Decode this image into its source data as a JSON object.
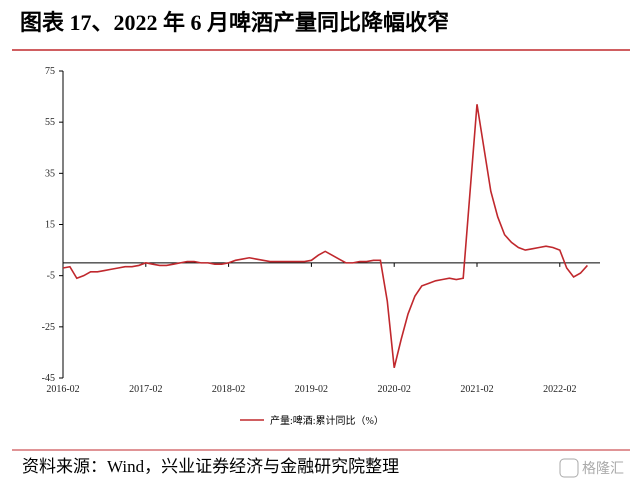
{
  "chart_data": {
    "type": "line",
    "title": "图表 17、2022 年 6 月啤酒产量同比降幅收窄",
    "source": "资料来源：Wind，兴业证券经济与金融研究院整理",
    "watermark": "格隆汇",
    "x": [
      "2016-02",
      "2016-03",
      "2016-04",
      "2016-05",
      "2016-06",
      "2016-07",
      "2016-08",
      "2016-09",
      "2016-10",
      "2016-11",
      "2016-12",
      "2017-01",
      "2017-02",
      "2017-03",
      "2017-04",
      "2017-05",
      "2017-06",
      "2017-07",
      "2017-08",
      "2017-09",
      "2017-10",
      "2017-11",
      "2017-12",
      "2018-01",
      "2018-02",
      "2018-03",
      "2018-04",
      "2018-05",
      "2018-06",
      "2018-07",
      "2018-08",
      "2018-09",
      "2018-10",
      "2018-11",
      "2018-12",
      "2019-01",
      "2019-02",
      "2019-03",
      "2019-04",
      "2019-05",
      "2019-06",
      "2019-07",
      "2019-08",
      "2019-09",
      "2019-10",
      "2019-11",
      "2019-12",
      "2020-01",
      "2020-02",
      "2020-03",
      "2020-04",
      "2020-05",
      "2020-06",
      "2020-07",
      "2020-08",
      "2020-09",
      "2020-10",
      "2020-11",
      "2020-12",
      "2021-01",
      "2021-02",
      "2021-03",
      "2021-04",
      "2021-05",
      "2021-06",
      "2021-07",
      "2021-08",
      "2021-09",
      "2021-10",
      "2021-11",
      "2021-12",
      "2022-01",
      "2022-02",
      "2022-03",
      "2022-04",
      "2022-05",
      "2022-06"
    ],
    "series": [
      {
        "name": "产量:啤酒:累计同比（%）",
        "color": "#c0282d",
        "values": [
          -2,
          -1.5,
          -6,
          -5,
          -3.5,
          -3.5,
          -3,
          -2.5,
          -2,
          -1.5,
          -1.5,
          -1,
          0,
          -0.5,
          -1,
          -1,
          -0.5,
          0,
          0.5,
          0.5,
          0,
          0,
          -0.5,
          -0.5,
          0,
          1,
          1.5,
          2,
          1.5,
          1,
          0.5,
          0.5,
          0.5,
          0.5,
          0.5,
          0.5,
          1,
          3,
          4.5,
          3,
          1.5,
          0,
          0,
          0.5,
          0.5,
          1,
          1,
          -15,
          -41,
          -30,
          -20,
          -13,
          -9,
          -8,
          -7,
          -6.5,
          -6,
          -6.5,
          -6,
          28,
          62,
          45,
          28,
          18,
          11,
          8,
          6,
          5,
          5.5,
          6,
          6.5,
          6,
          5,
          -2,
          -5.5,
          -4,
          -1
        ]
      }
    ],
    "xticks": [
      "2016-02",
      "2017-02",
      "2018-02",
      "2019-02",
      "2020-02",
      "2021-02",
      "2022-02"
    ],
    "ylim": [
      -45,
      75
    ],
    "yticks": [
      75,
      55,
      35,
      15,
      -5,
      -25,
      -45
    ]
  }
}
